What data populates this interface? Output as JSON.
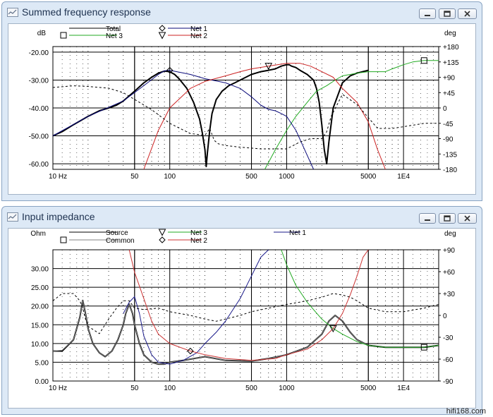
{
  "brand_tag": "hifi168.com",
  "windows": [
    {
      "title": "Summed frequency response",
      "icon": "graph-window-icon",
      "controls": [
        "minimize-icon",
        "maximize-icon",
        "close-icon"
      ]
    },
    {
      "title": "Input impedance",
      "icon": "graph-window-icon",
      "controls": [
        "minimize-icon",
        "maximize-icon",
        "close-icon"
      ]
    }
  ],
  "chart_data": [
    {
      "type": "line",
      "title": "Summed frequency response",
      "xscale": "log",
      "xlim": [
        10,
        20000
      ],
      "x_ticks": [
        {
          "value": 10,
          "label": "10 Hz"
        },
        {
          "value": 50,
          "label": "50"
        },
        {
          "value": 100,
          "label": "100"
        },
        {
          "value": 500,
          "label": "500"
        },
        {
          "value": 1000,
          "label": "1000"
        },
        {
          "value": 5000,
          "label": "5000"
        },
        {
          "value": 10000,
          "label": "1E4"
        }
      ],
      "ylabel": "dB",
      "ylim": [
        -62,
        -18
      ],
      "y_ticks": [
        -20,
        -30,
        -40,
        -50,
        -60
      ],
      "y_tick_labels": [
        "-20.00",
        "-30.00",
        "-40.00",
        "-50.00",
        "-60.00"
      ],
      "y2label": "deg",
      "y2lim": [
        -180,
        180
      ],
      "y2_ticks": [
        180,
        135,
        90,
        45,
        0,
        -45,
        -90,
        -135,
        -180
      ],
      "y2_tick_labels": [
        "+180",
        "+135",
        "+90",
        "+45",
        "0",
        "-45",
        "-90",
        "-135",
        "-180"
      ],
      "grid": true,
      "legend_position": "top",
      "series": [
        {
          "name": "Total",
          "axis": "left",
          "color": "#000000",
          "style": "solid",
          "width": 2,
          "marker": null,
          "x": [
            10,
            12,
            15,
            20,
            25,
            30,
            35,
            40,
            50,
            60,
            70,
            80,
            90,
            100,
            110,
            120,
            140,
            160,
            180,
            190,
            200,
            205,
            210,
            220,
            230,
            250,
            280,
            320,
            360,
            400,
            500,
            600,
            700,
            800,
            900,
            1000,
            1050,
            1100,
            1200,
            1300,
            1500,
            1700,
            1800,
            1900,
            2000,
            2100,
            2200,
            2300
          ],
          "y": [
            -50,
            -48.5,
            -46,
            -43,
            -41,
            -40,
            -39,
            -37.5,
            -34,
            -31,
            -29,
            -27.5,
            -26.8,
            -27,
            -28,
            -29.5,
            -33,
            -38,
            -44,
            -49,
            -55,
            -61,
            -56,
            -48,
            -42,
            -37,
            -34,
            -32,
            -31,
            -30,
            -28,
            -27,
            -26.5,
            -26,
            -25,
            -24.5,
            -24.5,
            -25,
            -25.5,
            -26.5,
            -28,
            -30,
            -33,
            -38,
            -46,
            -55,
            -60,
            -52
          ]
        },
        {
          "name": "Total",
          "axis": "left",
          "color": "#000000",
          "style": "solid",
          "width": 2,
          "marker": null,
          "legend": false,
          "x": [
            2300,
            2500,
            3000,
            3500,
            4000,
            5000
          ],
          "y": [
            -52,
            -40,
            -31,
            -28.5,
            -27.5,
            -26.5
          ]
        },
        {
          "name": "Net 3",
          "axis": "left",
          "color": "#22aa22",
          "style": "solid",
          "width": 1,
          "marker": "square",
          "x": [
            650,
            800,
            1000,
            1200,
            1500,
            1800,
            2200,
            2600,
            3000,
            3500,
            4000,
            5000,
            6000,
            7000,
            8000,
            10000,
            12000,
            15000,
            20000
          ],
          "y": [
            -62,
            -55,
            -48,
            -43,
            -38,
            -34,
            -32,
            -30,
            -28.5,
            -28,
            -27.5,
            -27,
            -27,
            -27,
            -26,
            -24.5,
            -23.5,
            -23,
            -23
          ]
        },
        {
          "name": "Net 1",
          "axis": "left",
          "color": "#0a0a7a",
          "style": "solid",
          "width": 1,
          "marker": "diamond",
          "x": [
            10,
            20,
            40,
            60,
            80,
            90,
            100,
            150,
            200,
            300,
            400,
            500,
            600,
            700,
            800,
            900,
            1000,
            1200,
            1500,
            1700
          ],
          "y": [
            -50,
            -43,
            -37.5,
            -32,
            -28,
            -26.7,
            -26.5,
            -28,
            -29.5,
            -31,
            -33,
            -36,
            -39,
            -40.5,
            -41,
            -42,
            -43,
            -48,
            -57,
            -62
          ]
        },
        {
          "name": "Net 2",
          "axis": "left",
          "color": "#cc2222",
          "style": "solid",
          "width": 1,
          "marker": "triangle",
          "x": [
            60,
            80,
            100,
            150,
            200,
            300,
            400,
            500,
            700,
            1000,
            1300,
            1600,
            2000,
            2500,
            3000,
            4000,
            5000,
            6000,
            7000
          ],
          "y": [
            -62,
            -48,
            -40,
            -33,
            -30.5,
            -28.5,
            -27,
            -26,
            -25,
            -24,
            -24,
            -25,
            -27,
            -29,
            -33,
            -38,
            -45,
            -55,
            -62
          ]
        },
        {
          "name": "Phase",
          "axis": "right",
          "color": "#000000",
          "style": "dashed",
          "width": 1,
          "marker": null,
          "legend": false,
          "x": [
            10,
            15,
            20,
            30,
            40,
            50,
            70,
            100,
            150,
            200,
            220,
            240,
            260,
            300,
            400,
            600,
            1000,
            1300,
            1600,
            2000,
            2200,
            2400,
            3000,
            4000,
            6000,
            8000,
            10000,
            15000,
            20000
          ],
          "y": [
            60,
            65,
            63,
            58,
            45,
            25,
            -5,
            -45,
            -75,
            -80,
            -60,
            -95,
            -105,
            -110,
            -115,
            -120,
            -120,
            -100,
            -90,
            -90,
            -70,
            -25,
            40,
            10,
            -60,
            -60,
            -55,
            -45,
            -45
          ]
        }
      ]
    },
    {
      "type": "line",
      "title": "Input impedance",
      "xscale": "log",
      "xlim": [
        10,
        20000
      ],
      "x_ticks": [
        {
          "value": 10,
          "label": "10 Hz"
        },
        {
          "value": 50,
          "label": "50"
        },
        {
          "value": 100,
          "label": "100"
        },
        {
          "value": 500,
          "label": "500"
        },
        {
          "value": 1000,
          "label": "1000"
        },
        {
          "value": 5000,
          "label": "5000"
        },
        {
          "value": 10000,
          "label": "1E4"
        }
      ],
      "ylabel": "Ohm",
      "ylim": [
        0,
        35
      ],
      "y_ticks": [
        0,
        5,
        10,
        15,
        20,
        25,
        30
      ],
      "y_tick_labels": [
        "0.00",
        "5.00",
        "10.00",
        "15.00",
        "20.00",
        "25.00",
        "30.00"
      ],
      "y2label": "deg",
      "y2lim": [
        -90,
        90
      ],
      "y2_ticks": [
        90,
        60,
        30,
        0,
        -30,
        -60,
        -90
      ],
      "y2_tick_labels": [
        "+90",
        "+60",
        "+30",
        "0",
        "-30",
        "-60",
        "-90"
      ],
      "grid": true,
      "legend_position": "top",
      "series": [
        {
          "name": "Source",
          "axis": "left",
          "color": "#000000",
          "style": "solid",
          "width": 2,
          "marker": null,
          "x": [
            10,
            12,
            15,
            17,
            18,
            19,
            20,
            22,
            25,
            28,
            32,
            36,
            40,
            42,
            45,
            48,
            50,
            55,
            60,
            70,
            80,
            90,
            100,
            130,
            200,
            300,
            500,
            700,
            1000,
            1500,
            2000,
            2300,
            2600,
            3000,
            3500,
            4000,
            5000,
            7000,
            10000,
            15000,
            20000
          ],
          "y": [
            8,
            8,
            11,
            17,
            21.5,
            18,
            14,
            10,
            7.5,
            6.5,
            8,
            11,
            15,
            18,
            20.5,
            18,
            15,
            10,
            7,
            5,
            4.5,
            4.5,
            5,
            5.5,
            6.5,
            5.5,
            5.3,
            6,
            7,
            9,
            12.5,
            16,
            17.5,
            16,
            13,
            11,
            9.5,
            9,
            9,
            9,
            9.5
          ]
        },
        {
          "name": "Common",
          "axis": "left",
          "color": "#808080",
          "style": "solid",
          "width": 1,
          "marker": "square",
          "x": [
            10,
            12,
            15,
            17,
            18,
            19,
            20,
            22,
            25,
            28,
            32,
            36,
            40,
            42,
            45,
            48,
            50,
            55,
            60,
            70,
            80,
            90,
            100,
            130,
            200,
            300,
            500,
            700,
            1000,
            1500,
            2000,
            2300,
            2600,
            3000,
            3500,
            4000,
            5000,
            7000,
            10000,
            15000,
            20000
          ],
          "y": [
            8,
            8.2,
            11,
            17,
            21.5,
            18,
            14,
            10,
            7.5,
            6.5,
            8,
            11,
            15,
            18,
            20.5,
            18,
            15,
            10,
            7,
            5,
            4.5,
            4.5,
            5,
            5.5,
            6.5,
            5.5,
            5.3,
            6,
            7,
            9,
            12.5,
            16,
            17.5,
            16,
            13,
            11,
            9.5,
            9,
            9,
            9,
            9.5
          ]
        },
        {
          "name": "Net 3",
          "axis": "left",
          "color": "#22aa22",
          "style": "solid",
          "width": 1,
          "marker": "triangle",
          "x": [
            900,
            1000,
            1200,
            1500,
            2000,
            2500,
            3000,
            4000,
            5000,
            7000,
            10000,
            15000,
            20000
          ],
          "y": [
            35,
            31,
            25.5,
            21,
            16.5,
            14,
            12.5,
            10.5,
            9.5,
            9,
            9,
            9,
            9.5
          ]
        },
        {
          "name": "Net 1",
          "axis": "left",
          "color": "#1a1a8a",
          "style": "solid",
          "width": 1,
          "marker": null,
          "x": [
            40,
            45,
            50,
            55,
            60,
            70,
            80,
            100,
            130,
            170,
            200,
            250,
            300,
            400,
            500,
            600,
            700
          ],
          "y": [
            18,
            21,
            22.5,
            18,
            12,
            7,
            5,
            4.5,
            5.5,
            7.5,
            10,
            13,
            16,
            22,
            28,
            33,
            35
          ]
        },
        {
          "name": "Net 2",
          "axis": "left",
          "color": "#cc3333",
          "style": "solid",
          "width": 1,
          "marker": "diamond",
          "x": [
            45,
            50,
            60,
            70,
            80,
            100,
            150,
            200,
            300,
            500,
            800,
            1000,
            1500,
            2000,
            2500,
            3000,
            3500,
            4000,
            4500,
            5000
          ],
          "y": [
            35,
            29,
            22,
            16,
            12.5,
            10,
            8,
            7,
            6,
            5.5,
            6,
            7,
            8.5,
            11,
            14,
            18,
            23,
            28,
            33,
            35
          ]
        },
        {
          "name": "Phase",
          "axis": "right",
          "color": "#000000",
          "style": "dashed",
          "width": 1,
          "marker": null,
          "legend": false,
          "x": [
            10,
            12,
            15,
            17,
            18,
            19,
            20,
            25,
            30,
            35,
            40,
            45,
            50,
            60,
            80,
            100,
            150,
            200,
            250,
            300,
            400,
            500,
            700,
            1000,
            1500,
            2000,
            2500,
            3000,
            3500,
            4000,
            5000,
            7000,
            10000,
            15000,
            20000
          ],
          "y": [
            20,
            30,
            30,
            20,
            10,
            -5,
            -15,
            -25,
            -5,
            10,
            20,
            20,
            10,
            8,
            10,
            5,
            0,
            -5,
            -8,
            -5,
            0,
            5,
            10,
            15,
            20,
            25,
            30,
            28,
            25,
            20,
            10,
            5,
            5,
            10,
            15
          ]
        }
      ]
    }
  ]
}
